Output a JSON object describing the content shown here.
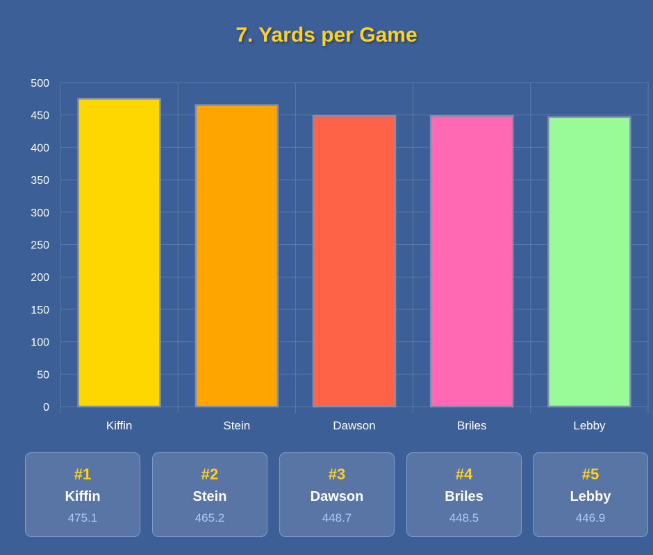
{
  "title": "7. Yards per Game",
  "colors": {
    "background": "#3d5f98",
    "title": "#ffd21f",
    "rank": "#ffd21f",
    "value": "#a8cdf5"
  },
  "chart_data": {
    "type": "bar",
    "title": "7. Yards per Game",
    "xlabel": "",
    "ylabel": "",
    "categories": [
      "Kiffin",
      "Stein",
      "Dawson",
      "Briles",
      "Lebby"
    ],
    "values": [
      475.1,
      465.2,
      448.7,
      448.5,
      446.9
    ],
    "bar_colors": [
      "#ffd700",
      "#ffa500",
      "#ff6347",
      "#ff69b4",
      "#98fb98"
    ],
    "ylim": [
      0,
      500
    ],
    "yticks": [
      0,
      50,
      100,
      150,
      200,
      250,
      300,
      350,
      400,
      450,
      500
    ],
    "grid": true,
    "legend": "none"
  },
  "rankings": [
    {
      "rank": "#1",
      "name": "Kiffin",
      "value": "475.1"
    },
    {
      "rank": "#2",
      "name": "Stein",
      "value": "465.2"
    },
    {
      "rank": "#3",
      "name": "Dawson",
      "value": "448.7"
    },
    {
      "rank": "#4",
      "name": "Briles",
      "value": "448.5"
    },
    {
      "rank": "#5",
      "name": "Lebby",
      "value": "446.9"
    }
  ]
}
